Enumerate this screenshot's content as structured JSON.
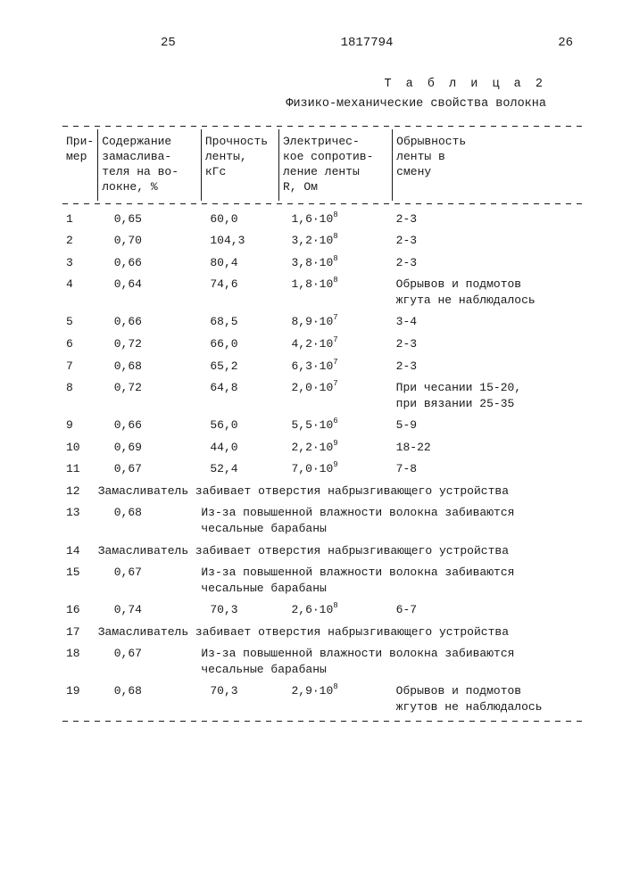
{
  "page": {
    "left_num": "25",
    "doc_num": "1817794",
    "right_num": "26"
  },
  "caption": {
    "label": "Т а б л и ц а 2",
    "title": "Физико-механические свойства волокна"
  },
  "headers": {
    "c0": "При-\nмер",
    "c1": "Содержание\nзамаслива-\nтеля на во-\nлокне, %",
    "c2": "Прочность\nленты,\nкГс",
    "c3": "Электричес-\nкое сопротив-\nление ленты\nR, Ом",
    "c4": "Обрывность\nленты в\nсмену"
  },
  "rows": [
    {
      "n": "1",
      "a": "0,65",
      "b": "60,0",
      "c": "1,6·10",
      "e": "8",
      "d": "2-3"
    },
    {
      "n": "2",
      "a": "0,70",
      "b": "104,3",
      "c": "3,2·10",
      "e": "8",
      "d": "2-3"
    },
    {
      "n": "3",
      "a": "0,66",
      "b": "80,4",
      "c": "3,8·10",
      "e": "8",
      "d": "2-3"
    },
    {
      "n": "4",
      "a": "0,64",
      "b": "74,6",
      "c": "1,8·10",
      "e": "8",
      "d": "Обрывов и подмотов\nжгута не наблюдалось"
    },
    {
      "n": "5",
      "a": "0,66",
      "b": "68,5",
      "c": "8,9·10",
      "e": "7",
      "d": "3-4"
    },
    {
      "n": "6",
      "a": "0,72",
      "b": "66,0",
      "c": "4,2·10",
      "e": "7",
      "d": "2-3"
    },
    {
      "n": "7",
      "a": "0,68",
      "b": "65,2",
      "c": "6,3·10",
      "e": "7",
      "d": "2-3"
    },
    {
      "n": "8",
      "a": "0,72",
      "b": "64,8",
      "c": "2,0·10",
      "e": "7",
      "d": "При чесании 15-20,\nпри вязании 25-35"
    },
    {
      "n": "9",
      "a": "0,66",
      "b": "56,0",
      "c": "5,5·10",
      "e": "6",
      "d": "5-9"
    },
    {
      "n": "10",
      "a": "0,69",
      "b": "44,0",
      "c": "2,2·10",
      "e": "9",
      "d": "18-22"
    },
    {
      "n": "11",
      "a": "0,67",
      "b": "52,4",
      "c": "7,0·10",
      "e": "9",
      "d": "7-8"
    },
    {
      "n": "12",
      "note_full": "Замасливатель забивает отверстия набрызгивающего устройства"
    },
    {
      "n": "13",
      "a": "0,68",
      "note_right": "Из-за повышенной влажности волокна забиваются\nчесальные барабаны"
    },
    {
      "n": "14",
      "note_full": "Замасливатель забивает отверстия набрызгивающего устройства"
    },
    {
      "n": "15",
      "a": "0,67",
      "note_right": "Из-за повышенной влажности волокна забиваются\nчесальные барабаны"
    },
    {
      "n": "16",
      "a": "0,74",
      "b": "70,3",
      "c": "2,6·10",
      "e": "8",
      "d": "6-7"
    },
    {
      "n": "17",
      "note_full": "Замасливатель забивает отверстия набрызгивающего устройства"
    },
    {
      "n": "18",
      "a": "0,67",
      "note_right": "Из-за повышенной влажности волокна забиваются\nчесальные барабаны"
    },
    {
      "n": "19",
      "a": "0,68",
      "b": "70,3",
      "c": "2,9·10",
      "e": "8",
      "d": "Обрывов и подмотов\nжгутов не наблюдалось"
    }
  ]
}
